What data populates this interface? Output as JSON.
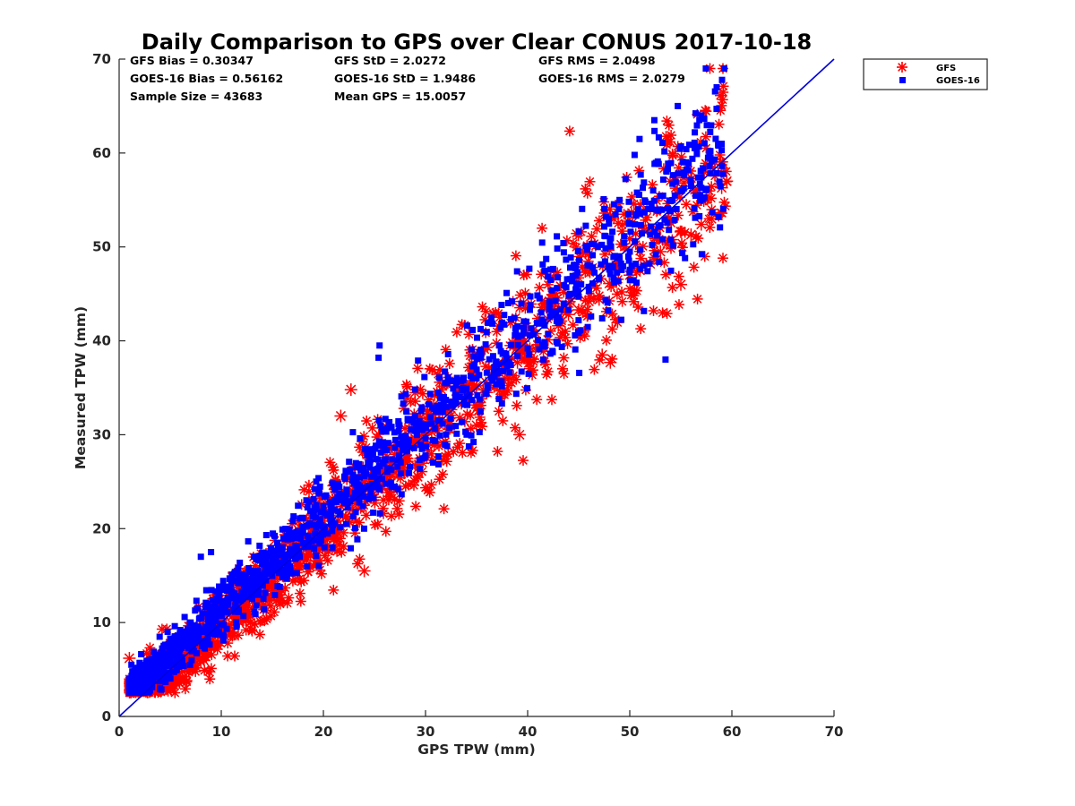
{
  "chart_data": {
    "type": "scatter",
    "title": "Daily Comparison to GPS over Clear CONUS 2017-10-18",
    "xlabel": "GPS TPW (mm)",
    "ylabel": "Measured TPW (mm)",
    "xlim": [
      0,
      70
    ],
    "ylim": [
      0,
      70
    ],
    "xticks": [
      "0",
      "10",
      "20",
      "30",
      "40",
      "50",
      "60",
      "70"
    ],
    "yticks": [
      "0",
      "10",
      "20",
      "30",
      "40",
      "50",
      "60",
      "70"
    ],
    "grid": false,
    "legend_position": "outside-top-right",
    "stats": [
      "GFS Bias = 0.30347",
      "GFS StD = 2.0272",
      "GFS RMS = 2.0498",
      "GOES-16 Bias = 0.56162",
      "GOES-16 StD = 1.9486",
      "GOES-16 RMS = 2.0279",
      "Sample Size = 43683",
      "Mean GPS = 15.0057"
    ],
    "reference_line": {
      "name": "1:1 line",
      "x": [
        0,
        70
      ],
      "y": [
        0,
        70
      ],
      "color": "#0000dd"
    },
    "series": [
      {
        "name": "GFS",
        "marker": "asterisk",
        "color": "#ff0000",
        "bias": 0.30347,
        "x": [
          1.0,
          1.5,
          2,
          3,
          4,
          5,
          6,
          7,
          8,
          9,
          10,
          11,
          12,
          13,
          14,
          15,
          16,
          17,
          18,
          19,
          20,
          21,
          22,
          23,
          24,
          25,
          26,
          27,
          28,
          29,
          30,
          31,
          32,
          33,
          34,
          35,
          36,
          37,
          38,
          39,
          40,
          41,
          42,
          43,
          44,
          45,
          46,
          47,
          48,
          49,
          50,
          51,
          52,
          53,
          54,
          55,
          56,
          57,
          58,
          59,
          59.5,
          21.7,
          22.7,
          19.3,
          30.6,
          39.2,
          47.3,
          48.1,
          55.0,
          16.0,
          24.0,
          14.0,
          35.0
        ],
        "y": [
          6.2,
          3.0,
          5.0,
          3.3,
          4.3,
          5.6,
          7.2,
          8.0,
          9.1,
          11.0,
          11.8,
          12.3,
          13.6,
          14.4,
          15.0,
          16.2,
          17.1,
          18.5,
          19.0,
          20.6,
          20.8,
          21.0,
          23.3,
          24.2,
          24.5,
          25.1,
          25.9,
          27.9,
          29.2,
          29.3,
          30.0,
          31.6,
          33.0,
          33.8,
          34.8,
          35.2,
          34.5,
          36.3,
          36.9,
          37.7,
          38.2,
          39.6,
          40.1,
          41.6,
          42.8,
          43.3,
          44.2,
          44.4,
          46.1,
          47.7,
          47.0,
          47.5,
          48.2,
          49.5,
          50.2,
          51.6,
          51.3,
          52.4,
          53.0,
          56.3,
          57.0,
          32.0,
          34.8,
          19.0,
          30.3,
          30.0,
          38.5,
          37.7,
          46.0,
          15.0,
          15.5,
          15.5,
          31.0
        ]
      },
      {
        "name": "GOES-16",
        "marker": "square",
        "color": "#0000ff",
        "bias": 0.56162,
        "x": [
          1.2,
          2,
          3,
          4,
          5,
          6,
          7,
          8,
          9,
          10,
          11,
          12,
          13,
          14,
          15,
          16,
          17,
          18,
          19,
          20,
          21,
          22,
          23,
          24,
          25,
          26,
          27,
          28,
          29,
          30,
          31,
          32,
          33,
          34,
          35,
          36,
          37,
          38,
          39,
          40,
          41,
          42,
          43,
          44,
          45,
          46,
          47,
          48,
          49,
          50,
          51,
          52,
          53,
          54,
          55,
          56,
          57,
          58,
          59,
          25.5,
          25.4,
          43.5,
          49.0,
          52.4,
          54.7,
          55.5,
          57.0,
          58.5,
          53.5,
          8.0,
          9.0
        ],
        "y": [
          5.5,
          5.7,
          5.4,
          6.5,
          8.3,
          8.6,
          10.0,
          10.5,
          11.3,
          12.3,
          13.3,
          14.5,
          15.4,
          16.2,
          17.1,
          18.0,
          19.5,
          21.1,
          21.3,
          22.4,
          22.8,
          23.6,
          24.8,
          25.6,
          26.3,
          27.3,
          28.6,
          29.6,
          30.4,
          31.1,
          32.5,
          33.7,
          34.2,
          34.9,
          36.0,
          36.6,
          36.8,
          37.3,
          38.4,
          39.2,
          40.1,
          40.7,
          41.9,
          43.3,
          44.7,
          45.3,
          46.7,
          47.6,
          48.8,
          49.5,
          49.7,
          51.3,
          52.3,
          53.8,
          55.9,
          56.5,
          57.4,
          59.1,
          60.3,
          39.5,
          38.2,
          50.4,
          55.0,
          63.5,
          65.0,
          59.0,
          64.0,
          64.7,
          38.0,
          17.0,
          17.5
        ]
      }
    ]
  }
}
